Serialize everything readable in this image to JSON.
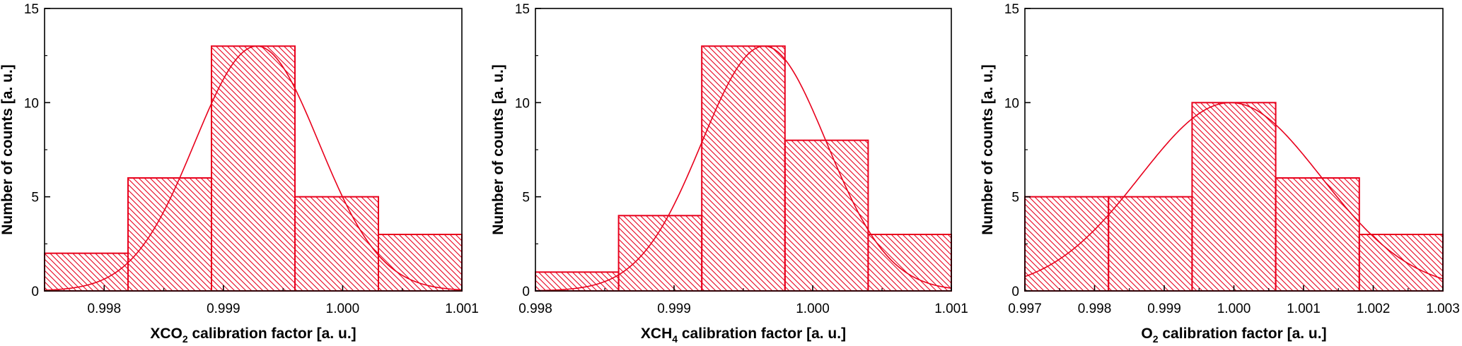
{
  "chart_data": [
    {
      "type": "bar",
      "subtype": "histogram",
      "xlabel": {
        "prefix": "XCO",
        "sub": "2",
        "suffix": " calibration factor [a. u.]"
      },
      "ylabel": "Number of counts [a. u.]",
      "xlim": [
        0.9975,
        1.001
      ],
      "ylim": [
        0,
        15
      ],
      "xticks": [
        0.998,
        0.999,
        1.0,
        1.001
      ],
      "xtick_labels": [
        "0.998",
        "0.999",
        "1.000",
        "1.001"
      ],
      "yticks": [
        0,
        5,
        10,
        15
      ],
      "ytick_labels": [
        "0",
        "5",
        "10",
        "15"
      ],
      "bins": [
        {
          "start": 0.9975,
          "end": 0.9982,
          "count": 2
        },
        {
          "start": 0.9982,
          "end": 0.9989,
          "count": 6
        },
        {
          "start": 0.9989,
          "end": 0.9996,
          "count": 13
        },
        {
          "start": 0.9996,
          "end": 1.0003,
          "count": 5
        },
        {
          "start": 1.0003,
          "end": 1.001,
          "count": 3
        }
      ],
      "fit": {
        "type": "gaussian",
        "amplitude": 13.0,
        "mean": 0.99928,
        "sigma": 0.00052
      },
      "color": "#e8001c",
      "fill_pattern": "diagonal-hatch",
      "grid": false
    },
    {
      "type": "bar",
      "subtype": "histogram",
      "xlabel": {
        "prefix": "XCH",
        "sub": "4",
        "suffix": " calibration factor [a. u.]"
      },
      "ylabel": "Number of counts [a. u.]",
      "xlim": [
        0.998,
        1.001
      ],
      "ylim": [
        0,
        15
      ],
      "xticks": [
        0.998,
        0.999,
        1.0,
        1.001
      ],
      "xtick_labels": [
        "0.998",
        "0.999",
        "1.000",
        "1.001"
      ],
      "yticks": [
        0,
        5,
        10,
        15
      ],
      "ytick_labels": [
        "0",
        "5",
        "10",
        "15"
      ],
      "bins": [
        {
          "start": 0.998,
          "end": 0.9986,
          "count": 1
        },
        {
          "start": 0.9986,
          "end": 0.9992,
          "count": 4
        },
        {
          "start": 0.9992,
          "end": 0.9998,
          "count": 13
        },
        {
          "start": 0.9998,
          "end": 1.0004,
          "count": 8
        },
        {
          "start": 1.0004,
          "end": 1.001,
          "count": 3
        }
      ],
      "fit": {
        "type": "gaussian",
        "amplitude": 13.0,
        "mean": 0.99965,
        "sigma": 0.00045
      },
      "color": "#e8001c",
      "fill_pattern": "diagonal-hatch",
      "grid": false
    },
    {
      "type": "bar",
      "subtype": "histogram",
      "xlabel": {
        "prefix": "O",
        "sub": "2",
        "suffix": " calibration factor [a. u.]"
      },
      "ylabel": "Number of counts [a. u.]",
      "xlim": [
        0.997,
        1.003
      ],
      "ylim": [
        0,
        15
      ],
      "xticks": [
        0.997,
        0.998,
        0.999,
        1.0,
        1.001,
        1.002,
        1.003
      ],
      "xtick_labels": [
        "0.997",
        "0.998",
        "0.999",
        "1.000",
        "1.001",
        "1.002",
        "1.003"
      ],
      "yticks": [
        0,
        5,
        10,
        15
      ],
      "ytick_labels": [
        "0",
        "5",
        "10",
        "15"
      ],
      "bins": [
        {
          "start": 0.997,
          "end": 0.9982,
          "count": 5
        },
        {
          "start": 0.9982,
          "end": 0.9994,
          "count": 5
        },
        {
          "start": 0.9994,
          "end": 1.0006,
          "count": 10
        },
        {
          "start": 1.0006,
          "end": 1.0018,
          "count": 6
        },
        {
          "start": 1.0018,
          "end": 1.003,
          "count": 3
        }
      ],
      "fit": {
        "type": "gaussian",
        "amplitude": 10.0,
        "mean": 0.99995,
        "sigma": 0.0013
      },
      "color": "#e8001c",
      "fill_pattern": "diagonal-hatch",
      "grid": false
    }
  ]
}
